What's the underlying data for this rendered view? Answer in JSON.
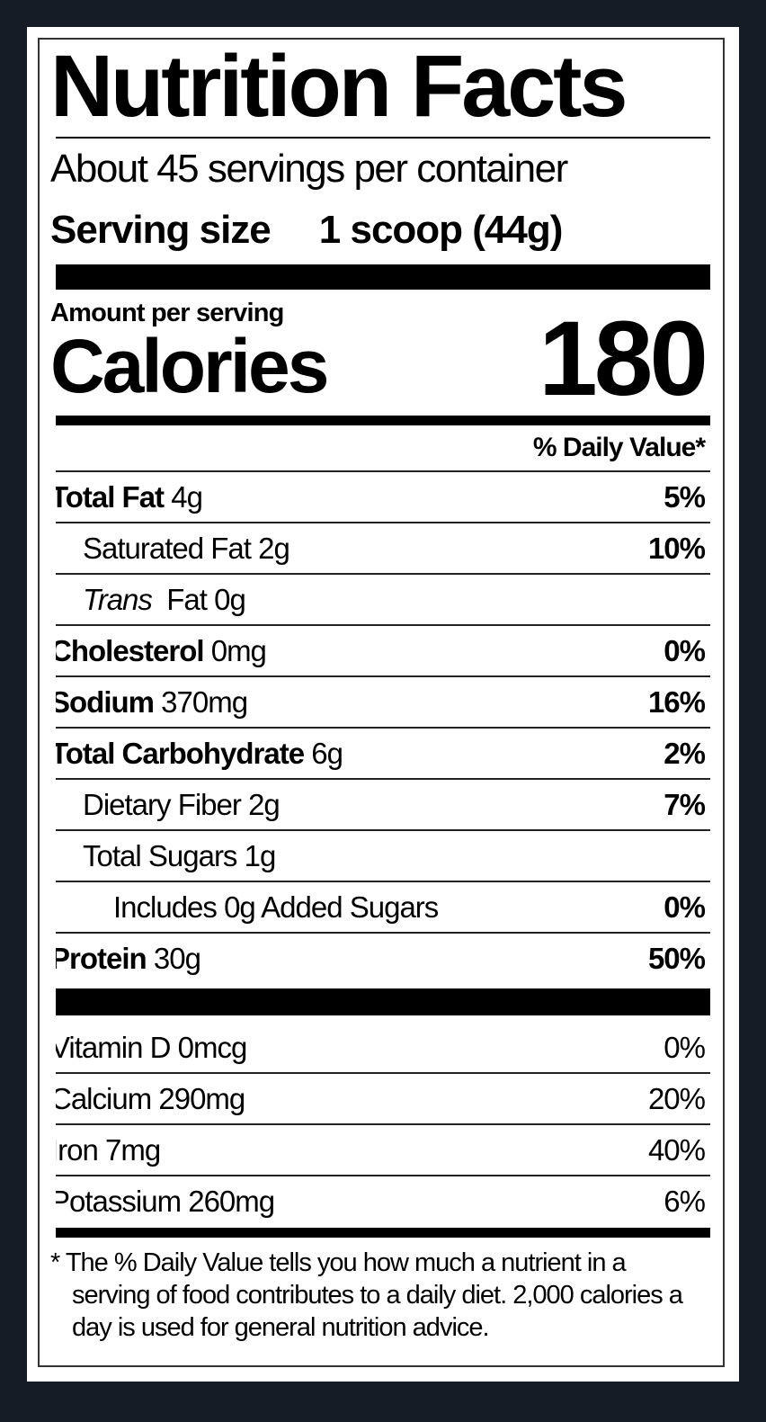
{
  "title": "Nutrition Facts",
  "servings_per_container": "About 45 servings per container",
  "serving_size": {
    "label": "Serving size",
    "value": "1 scoop (44g)"
  },
  "amount_per_serving": "Amount per serving",
  "calories": {
    "label": "Calories",
    "value": "180"
  },
  "daily_value_header": "% Daily Value*",
  "nutrients": [
    {
      "name": "Total Fat",
      "amount": "4g",
      "dv": "5%"
    },
    {
      "name": "Saturated Fat",
      "amount": "2g",
      "dv": "10%"
    },
    {
      "name": "Trans",
      "amount": "Fat 0g",
      "dv": ""
    },
    {
      "name": "Cholesterol",
      "amount": "0mg",
      "dv": "0%"
    },
    {
      "name": "Sodium",
      "amount": "370mg",
      "dv": "16%"
    },
    {
      "name": "Total Carbohydrate",
      "amount": "6g",
      "dv": "2%"
    },
    {
      "name": "Dietary Fiber",
      "amount": "2g",
      "dv": "7%"
    },
    {
      "name": "Total Sugars",
      "amount": "1g",
      "dv": ""
    },
    {
      "name": "Includes 0g Added Sugars",
      "amount": "",
      "dv": "0%"
    },
    {
      "name": "Protein",
      "amount": "30g",
      "dv": "50%"
    }
  ],
  "vitamins": [
    {
      "name": "Vitamin D 0mcg",
      "dv": "0%"
    },
    {
      "name": "Calcium 290mg",
      "dv": "20%"
    },
    {
      "name": "Iron 7mg",
      "dv": "40%"
    },
    {
      "name": "Potassium 260mg",
      "dv": "6%"
    }
  ],
  "footnote": "* The % Daily Value tells you how much a nutrient in a serving of food contributes to a daily diet. 2,000 calories a day is used for general nutrition advice.",
  "colors": {
    "background": "#161c25",
    "panel": "#ffffff",
    "text": "#000000"
  }
}
